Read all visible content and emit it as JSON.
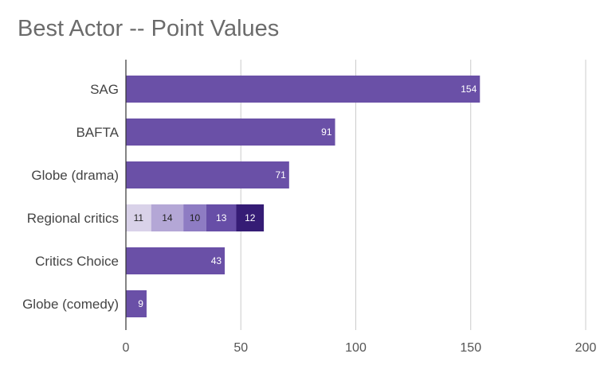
{
  "chart_data": {
    "type": "bar",
    "orientation": "horizontal",
    "stacked": true,
    "title": "Best Actor -- Point Values",
    "xlabel": "",
    "ylabel": "",
    "xlim": [
      0,
      200
    ],
    "xticks": [
      0,
      50,
      100,
      150,
      200
    ],
    "grid": true,
    "legend": "none",
    "categories": [
      "SAG",
      "BAFTA",
      "Globe (drama)",
      "Regional critics",
      "Critics Choice",
      "Globe (comedy)"
    ],
    "bars": [
      {
        "category": "SAG",
        "segments": [
          154
        ]
      },
      {
        "category": "BAFTA",
        "segments": [
          91
        ]
      },
      {
        "category": "Globe (drama)",
        "segments": [
          71
        ]
      },
      {
        "category": "Regional critics",
        "segments": [
          11,
          14,
          10,
          13,
          12
        ]
      },
      {
        "category": "Critics Choice",
        "segments": [
          43
        ]
      },
      {
        "category": "Globe (comedy)",
        "segments": [
          9
        ]
      }
    ],
    "colors": {
      "main": "#6a50a7",
      "regional": [
        "#d9d2e9",
        "#b4a7d6",
        "#8e7cc3",
        "#674ea7",
        "#351c75"
      ],
      "grid": "#cccccc",
      "axis": "#333333"
    }
  }
}
